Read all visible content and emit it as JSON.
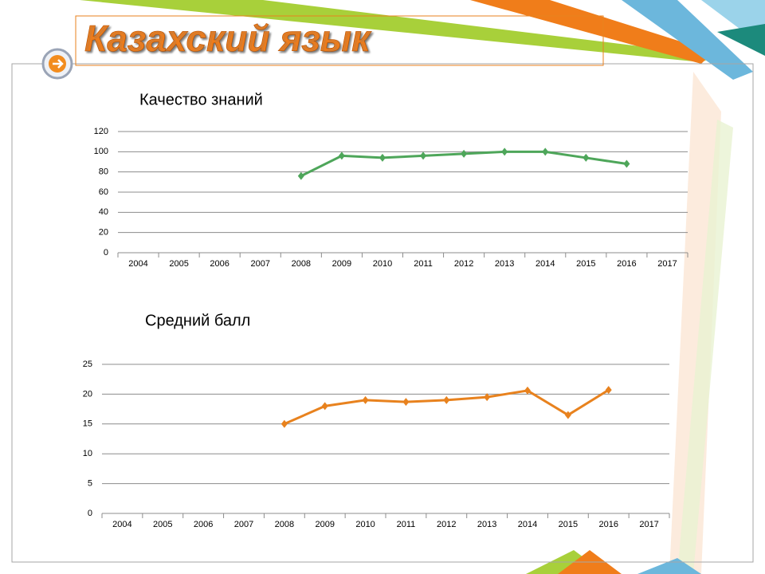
{
  "header": {
    "title": "Казахский язык"
  },
  "chart_data": [
    {
      "type": "line",
      "title": "Качество знаний",
      "categories": [
        "2004",
        "2005",
        "2006",
        "2007",
        "2008",
        "2009",
        "2010",
        "2011",
        "2012",
        "2013",
        "2014",
        "2015",
        "2016",
        "2017"
      ],
      "series": [
        {
          "color": "#4ea65a",
          "values": [
            null,
            null,
            null,
            null,
            76,
            96,
            94,
            96,
            98,
            100,
            100,
            94,
            88,
            null
          ]
        }
      ],
      "ylim": [
        0,
        120
      ],
      "yticks": [
        0,
        20,
        40,
        60,
        80,
        100,
        120
      ],
      "grid": true
    },
    {
      "type": "line",
      "title": "Средний балл",
      "categories": [
        "2004",
        "2005",
        "2006",
        "2007",
        "2008",
        "2009",
        "2010",
        "2011",
        "2012",
        "2013",
        "2014",
        "2015",
        "2016",
        "2017"
      ],
      "series": [
        {
          "color": "#e8821e",
          "values": [
            null,
            null,
            null,
            null,
            15,
            18,
            19,
            18.7,
            19,
            19.5,
            20.6,
            16.5,
            20.7,
            null
          ]
        }
      ],
      "ylim": [
        0,
        25
      ],
      "yticks": [
        0,
        5,
        10,
        15,
        20,
        25
      ],
      "grid": true
    }
  ]
}
